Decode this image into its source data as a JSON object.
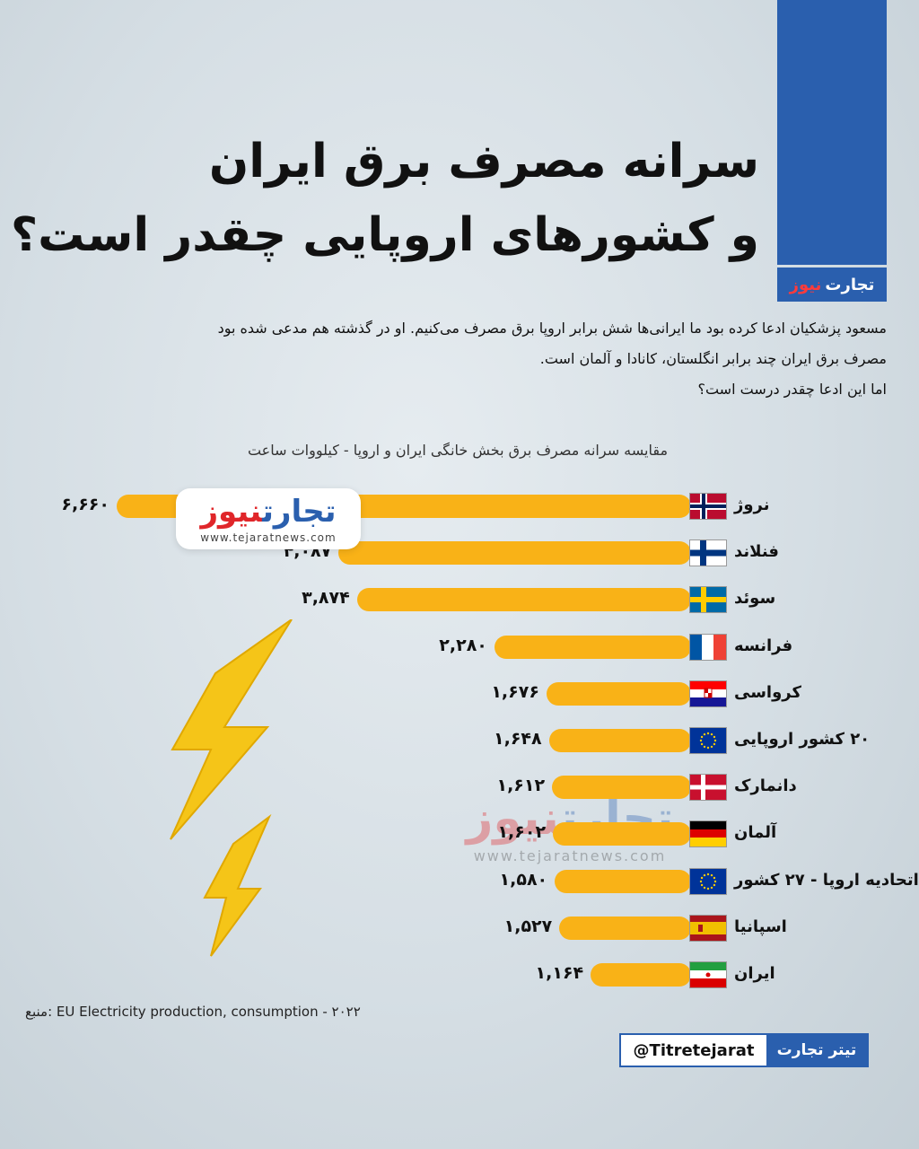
{
  "header": {
    "title_line1": "سرانه مصرف برق ایران",
    "title_line2": "و کشورهای اروپایی چقدر است؟",
    "brand_part1": "تجارت",
    "brand_part2": "نیوز"
  },
  "intro": {
    "line1": "مسعود پزشکیان ادعا کرده بود ما ایرانی‌ها شش برابر اروپا برق مصرف می‌کنیم. او در گذشته هم مدعی شده بود",
    "line2": "مصرف برق ایران چند برابر انگلستان، کانادا و آلمان است.",
    "line3": "اما این ادعا چقدر درست است؟"
  },
  "logo": {
    "part1": "تجارت",
    "part2": "نیوز",
    "url": "www.tejaratnews.com"
  },
  "watermark": {
    "part1": "تجارت",
    "part2": "نیوز",
    "url": "www.tejaratnews.com"
  },
  "chart_data": {
    "type": "bar",
    "orientation": "horizontal",
    "title": "مقایسه سرانه مصرف برق بخش خانگی ایران و اروپا - کیلووات ساعت",
    "categories": [
      "نروژ",
      "فنلاند",
      "سوئد",
      "فرانسه",
      "کرواسی",
      "۲۰ کشور اروپایی",
      "دانمارک",
      "آلمان",
      "اتحادیه اروپا - ۲۷ کشور",
      "اسپانیا",
      "ایران"
    ],
    "values": [
      6660,
      4087,
      3874,
      2280,
      1676,
      1648,
      1612,
      1602,
      1580,
      1527,
      1164
    ],
    "value_labels": [
      "۶,۶۶۰",
      "۴,۰۸۷",
      "۳,۸۷۴",
      "۲,۲۸۰",
      "۱,۶۷۶",
      "۱,۶۴۸",
      "۱,۶۱۲",
      "۱,۶۰۲",
      "۱,۵۸۰",
      "۱,۵۲۷",
      "۱,۱۶۴"
    ],
    "flags": [
      "norway",
      "finland",
      "sweden",
      "france",
      "croatia",
      "eu",
      "denmark",
      "germany",
      "eu",
      "spain",
      "iran"
    ],
    "bar_color": "#f9b217"
  },
  "footer": {
    "source": "منبع: EU Electricity production, consumption - ۲۰۲۲",
    "handle": "@Titretejarat",
    "handle_brand": "تیتر تجارت"
  },
  "colors": {
    "brand_blue": "#2a5fae",
    "brand_red": "#e0262a",
    "bolt_yellow": "#f5c518"
  }
}
